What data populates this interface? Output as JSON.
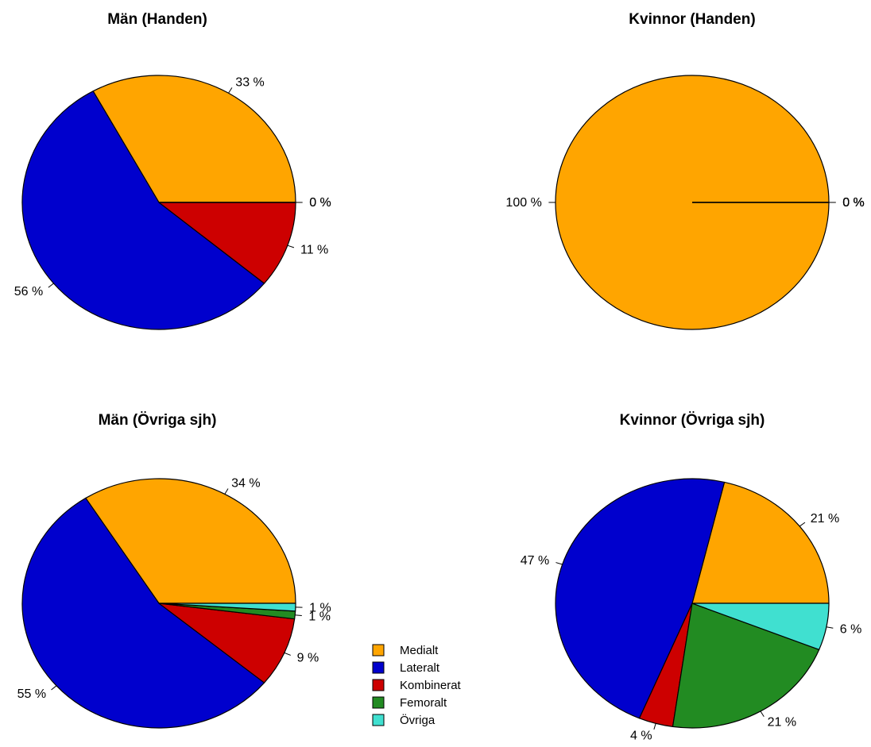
{
  "legend": {
    "placement": "bottom-center",
    "items": [
      {
        "label": "Medialt",
        "color": "#FFA500"
      },
      {
        "label": "Lateralt",
        "color": "#0000CD"
      },
      {
        "label": "Kombinerat",
        "color": "#CD0000"
      },
      {
        "label": "Femoralt",
        "color": "#228B22"
      },
      {
        "label": "Övriga",
        "color": "#40E0D0"
      }
    ]
  },
  "chart_data": [
    {
      "type": "pie",
      "title": "Män (Handen)",
      "categories": [
        "Medialt",
        "Lateralt",
        "Kombinerat",
        "Femoralt",
        "Övriga"
      ],
      "values": [
        33,
        56,
        11,
        0,
        0
      ],
      "labels": [
        "33 %",
        "56 %",
        "11 %",
        "0 %",
        "0 %"
      ]
    },
    {
      "type": "pie",
      "title": "Kvinnor (Handen)",
      "categories": [
        "Medialt",
        "Lateralt",
        "Kombinerat",
        "Femoralt",
        "Övriga"
      ],
      "values": [
        100,
        0,
        0,
        0,
        0
      ],
      "labels": [
        "100 %",
        "0 %",
        "0 %",
        "0 %",
        "0 %"
      ]
    },
    {
      "type": "pie",
      "title": "Män (Övriga sjh)",
      "categories": [
        "Medialt",
        "Lateralt",
        "Kombinerat",
        "Femoralt",
        "Övriga"
      ],
      "values": [
        34,
        55,
        9,
        1,
        1
      ],
      "labels": [
        "34 %",
        "55 %",
        "9 %",
        "1 %",
        "1 %"
      ]
    },
    {
      "type": "pie",
      "title": "Kvinnor (Övriga sjh)",
      "categories": [
        "Medialt",
        "Lateralt",
        "Kombinerat",
        "Femoralt",
        "Övriga"
      ],
      "values": [
        21,
        47,
        4,
        21,
        6
      ],
      "labels": [
        "21 %",
        "47 %",
        "4 %",
        "21 %",
        "6 %"
      ]
    }
  ]
}
